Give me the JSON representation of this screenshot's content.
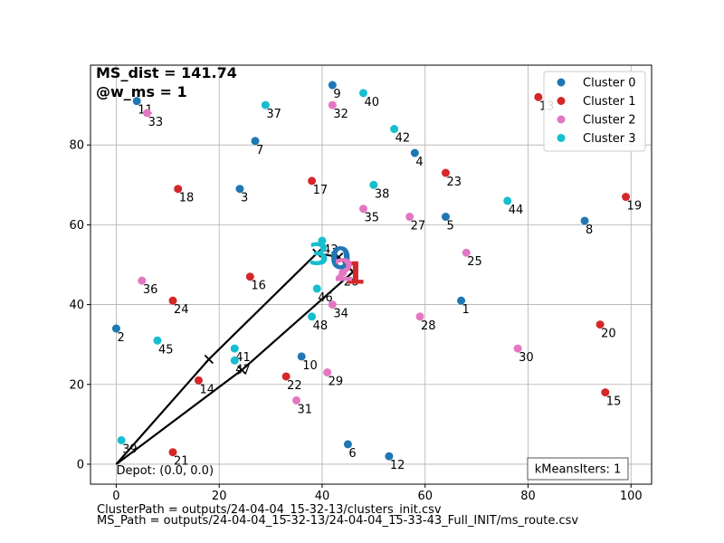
{
  "chart_data": {
    "type": "scatter",
    "title_lines": [
      "MS_dist = 141.74",
      "@w_ms = 1"
    ],
    "xlabel": "",
    "ylabel": "",
    "xlim": [
      -5,
      104
    ],
    "ylim": [
      -5,
      100
    ],
    "xticks": [
      0,
      20,
      40,
      60,
      80,
      100
    ],
    "yticks": [
      0,
      20,
      40,
      60,
      80
    ],
    "grid": true,
    "legend_position": "top-right",
    "series": [
      {
        "name": "Cluster 0",
        "color": "#1f77b4",
        "points": [
          {
            "label": "1",
            "x": 67,
            "y": 41
          },
          {
            "label": "2",
            "x": 0,
            "y": 34
          },
          {
            "label": "3",
            "x": 24,
            "y": 69
          },
          {
            "label": "4",
            "x": 58,
            "y": 78
          },
          {
            "label": "5",
            "x": 64,
            "y": 62
          },
          {
            "label": "6",
            "x": 45,
            "y": 5
          },
          {
            "label": "7",
            "x": 27,
            "y": 81
          },
          {
            "label": "8",
            "x": 91,
            "y": 61
          },
          {
            "label": "9",
            "x": 42,
            "y": 95
          },
          {
            "label": "10",
            "x": 36,
            "y": 27
          },
          {
            "label": "11",
            "x": 4,
            "y": 91
          },
          {
            "label": "12",
            "x": 53,
            "y": 2
          }
        ]
      },
      {
        "name": "Cluster 1",
        "color": "#d62728",
        "points": [
          {
            "label": "13",
            "x": 82,
            "y": 92
          },
          {
            "label": "14",
            "x": 16,
            "y": 21
          },
          {
            "label": "15",
            "x": 95,
            "y": 18
          },
          {
            "label": "16",
            "x": 26,
            "y": 47
          },
          {
            "label": "17",
            "x": 38,
            "y": 71
          },
          {
            "label": "18",
            "x": 12,
            "y": 69
          },
          {
            "label": "19",
            "x": 99,
            "y": 67
          },
          {
            "label": "20",
            "x": 94,
            "y": 35
          },
          {
            "label": "21",
            "x": 11,
            "y": 3
          },
          {
            "label": "22",
            "x": 33,
            "y": 22
          },
          {
            "label": "23",
            "x": 64,
            "y": 73
          },
          {
            "label": "24",
            "x": 11,
            "y": 41
          }
        ]
      },
      {
        "name": "Cluster 2",
        "color": "#e377c2",
        "points": [
          {
            "label": "25",
            "x": 68,
            "y": 53
          },
          {
            "label": "26",
            "x": 44,
            "y": 48
          },
          {
            "label": "27",
            "x": 57,
            "y": 62
          },
          {
            "label": "28",
            "x": 59,
            "y": 37
          },
          {
            "label": "29",
            "x": 41,
            "y": 23
          },
          {
            "label": "30",
            "x": 78,
            "y": 29
          },
          {
            "label": "31",
            "x": 35,
            "y": 16
          },
          {
            "label": "32",
            "x": 42,
            "y": 90
          },
          {
            "label": "33",
            "x": 6,
            "y": 88
          },
          {
            "label": "34",
            "x": 42,
            "y": 40
          },
          {
            "label": "35",
            "x": 48,
            "y": 64
          },
          {
            "label": "36",
            "x": 5,
            "y": 46
          }
        ]
      },
      {
        "name": "Cluster 3",
        "color": "#17becf",
        "points": [
          {
            "label": "37",
            "x": 29,
            "y": 90
          },
          {
            "label": "38",
            "x": 50,
            "y": 70
          },
          {
            "label": "39",
            "x": 1,
            "y": 6
          },
          {
            "label": "40",
            "x": 48,
            "y": 93
          },
          {
            "label": "41",
            "x": 23,
            "y": 29
          },
          {
            "label": "42",
            "x": 54,
            "y": 84
          },
          {
            "label": "43",
            "x": 40,
            "y": 56
          },
          {
            "label": "44",
            "x": 76,
            "y": 66
          },
          {
            "label": "45",
            "x": 8,
            "y": 31
          },
          {
            "label": "46",
            "x": 39,
            "y": 44
          },
          {
            "label": "47",
            "x": 23,
            "y": 26
          },
          {
            "label": "48",
            "x": 38,
            "y": 37
          }
        ]
      }
    ],
    "centroids": [
      {
        "label": "0",
        "x": 43.2,
        "y": 51.9,
        "color": "#1f77b4"
      },
      {
        "label": "1",
        "x": 46.0,
        "y": 48.2,
        "color": "#d62728"
      },
      {
        "label": "2",
        "x": 43.9,
        "y": 48.9,
        "color": "#e377c2"
      },
      {
        "label": "3",
        "x": 39.0,
        "y": 52.9,
        "color": "#17becf"
      }
    ],
    "route": {
      "color": "#000000",
      "points": [
        {
          "x": 0,
          "y": 0
        },
        {
          "x": 18.0,
          "y": 26.3
        },
        {
          "x": 39.0,
          "y": 52.9
        },
        {
          "x": 43.2,
          "y": 51.9
        },
        {
          "x": 46.0,
          "y": 48.2
        },
        {
          "x": 24.4,
          "y": 23.6
        },
        {
          "x": 0,
          "y": 0
        }
      ],
      "markers": [
        {
          "x": 18.0,
          "y": 26.3
        },
        {
          "x": 39.0,
          "y": 52.9
        },
        {
          "x": 43.2,
          "y": 51.9
        },
        {
          "x": 46.0,
          "y": 48.2
        },
        {
          "x": 24.4,
          "y": 23.6
        }
      ]
    },
    "depot": {
      "x": 0,
      "y": 0,
      "label": "Depot: (0.0, 0.0)"
    },
    "info_box": "kMeansIters: 1"
  },
  "footer": {
    "cluster_path": "ClusterPath = outputs/24-04-04_15-32-13/clusters_init.csv",
    "ms_path": "MS_Path = outputs/24-04-04_15-32-13/24-04-04_15-33-43_Full_INIT/ms_route.csv"
  }
}
